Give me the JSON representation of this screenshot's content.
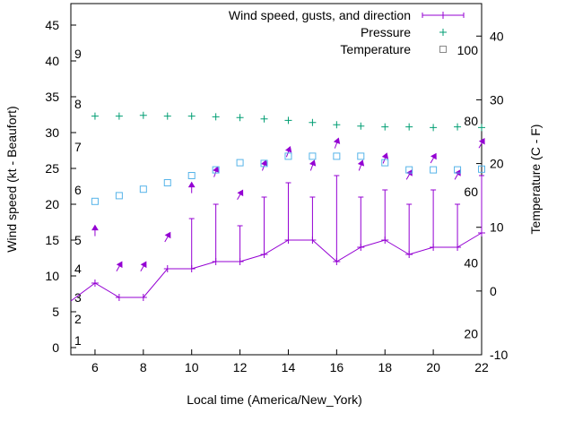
{
  "chart_data": {
    "type": "line",
    "title": "",
    "xlabel": "Local time (America/New_York)",
    "ylabel": "Wind speed (kt - Beaufort)",
    "y2label": "Temperature (C - F)",
    "xlim": [
      5,
      22
    ],
    "ylim": [
      -1,
      48
    ],
    "y2lim": [
      -10,
      45.1
    ],
    "xticks": [
      6,
      8,
      10,
      12,
      14,
      16,
      18,
      20,
      22
    ],
    "yticks": [
      0,
      5,
      10,
      15,
      20,
      25,
      30,
      35,
      40,
      45
    ],
    "y2ticks": [
      -10,
      0,
      10,
      20,
      30,
      40
    ],
    "beaufort_labels": [
      {
        "label": "1",
        "at": 1
      },
      {
        "label": "2",
        "at": 4
      },
      {
        "label": "3",
        "at": 7
      },
      {
        "label": "4",
        "at": 11
      },
      {
        "label": "5",
        "at": 15
      },
      {
        "label": "6",
        "at": 22
      },
      {
        "label": "7",
        "at": 28
      },
      {
        "label": "8",
        "at": 34
      },
      {
        "label": "9",
        "at": 41
      }
    ],
    "fahrenheit_labels": [
      {
        "label": "20",
        "at_c": -6.7
      },
      {
        "label": "40",
        "at_c": 4.4
      },
      {
        "label": "60",
        "at_c": 15.6
      },
      {
        "label": "80",
        "at_c": 26.7
      },
      {
        "label": "100",
        "at_c": 37.8
      }
    ],
    "legend": {
      "position": "top-right",
      "entries": [
        "Wind speed, gusts, and direction",
        "Pressure",
        "Temperature"
      ]
    },
    "x": [
      6,
      7,
      8,
      9,
      10,
      11,
      12,
      13,
      14,
      15,
      16,
      17,
      18,
      19,
      20,
      21,
      22
    ],
    "series": [
      {
        "name": "Wind speed, gusts, and direction",
        "color": "#9400d3",
        "start_value": 6.5,
        "values": [
          9,
          7,
          7,
          11,
          11,
          12,
          12,
          13,
          15,
          15,
          12,
          14,
          15,
          13,
          14,
          14,
          16
        ],
        "gusts": [
          null,
          null,
          null,
          null,
          18,
          20,
          17,
          21,
          23,
          21,
          24,
          21,
          22,
          20,
          22,
          20,
          24
        ],
        "arrow_y": [
          16.3,
          11.3,
          11.3,
          15.4,
          22.3,
          24.5,
          21.3,
          25.4,
          27.3,
          25.4,
          28.5,
          25.4,
          26.4,
          24.1,
          26.4,
          24.1,
          28.5
        ],
        "arrow_dir_deg": [
          0,
          30,
          30,
          30,
          0,
          20,
          30,
          20,
          20,
          20,
          20,
          20,
          20,
          30,
          30,
          30,
          30
        ]
      },
      {
        "name": "Pressure",
        "color": "#009e73",
        "values": [
          32.3,
          32.3,
          32.4,
          32.3,
          32.3,
          32.2,
          32.1,
          31.9,
          31.7,
          31.4,
          31.1,
          30.9,
          30.8,
          30.8,
          30.7,
          30.8,
          30.7
        ]
      },
      {
        "name": "Temperature",
        "color": "#56b4e9",
        "values": [
          20.4,
          21.2,
          22.1,
          23.0,
          24.0,
          24.8,
          25.8,
          25.7,
          26.7,
          26.7,
          26.7,
          26.7,
          25.8,
          24.8,
          24.8,
          24.8,
          24.9
        ]
      }
    ]
  }
}
